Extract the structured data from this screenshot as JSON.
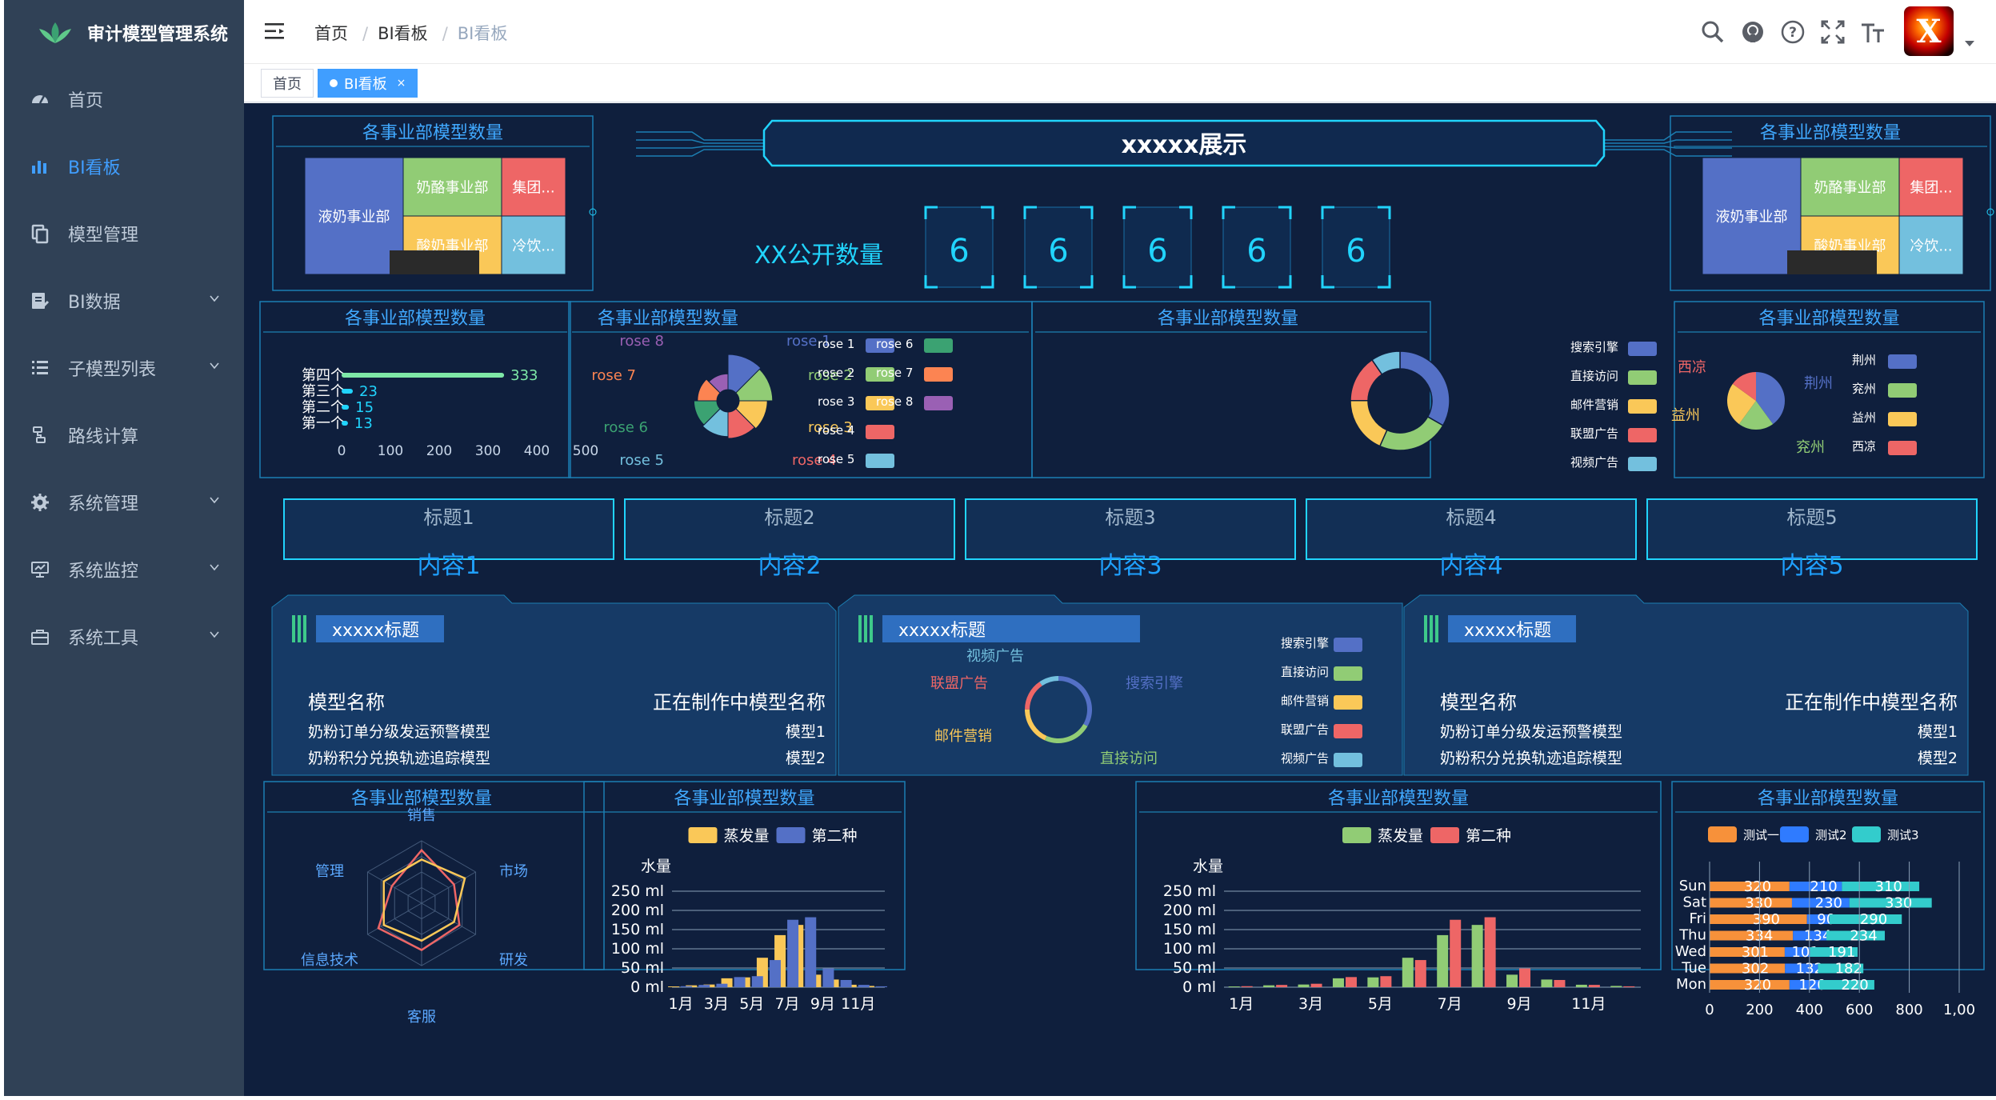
{
  "app": {
    "title": "审计模型管理系统"
  },
  "sidebar": {
    "items": [
      {
        "label": "首页",
        "icon": "dashboard-icon"
      },
      {
        "label": "BI看板",
        "icon": "bar-chart-icon"
      },
      {
        "label": "模型管理",
        "icon": "copy-icon"
      },
      {
        "label": "BI数据",
        "icon": "edit-doc-icon"
      },
      {
        "label": "子模型列表",
        "icon": "list-icon"
      },
      {
        "label": "路线计算",
        "icon": "route-icon"
      },
      {
        "label": "系统管理",
        "icon": "gear-icon"
      },
      {
        "label": "系统监控",
        "icon": "monitor-icon"
      },
      {
        "label": "系统工具",
        "icon": "toolbox-icon"
      }
    ]
  },
  "breadcrumb": [
    "首页",
    "BI看板",
    "BI看板"
  ],
  "tags": [
    {
      "label": "首页"
    },
    {
      "label": "BI看板",
      "close": "×"
    }
  ],
  "avatar": {
    "letter": "X"
  },
  "colors": {
    "accent": "#409eff",
    "sidebar": "#304156",
    "dash_bg": "#0f1f3d",
    "cyan": "#00e5ff"
  },
  "dashboard": {
    "header_title": "xxxxx展示",
    "count_label": "XX公开数量",
    "count_digits": [
      "6",
      "6",
      "6",
      "6",
      "6"
    ],
    "panel_title": "各事业部模型数量",
    "kpis": [
      {
        "title": "标题1",
        "content": "内容1"
      },
      {
        "title": "标题2",
        "content": "内容2"
      },
      {
        "title": "标题3",
        "content": "内容3"
      },
      {
        "title": "标题4",
        "content": "内容4"
      },
      {
        "title": "标题5",
        "content": "内容5"
      }
    ],
    "card_title": "xxxxx标题",
    "model_table": {
      "col1": "模型名称",
      "col2": "正在制作中模型名称",
      "rows": [
        [
          "奶粉订单分级发运预警模型",
          "模型1"
        ],
        [
          "奶粉积分兑换轨迹追踪模型",
          "模型2"
        ]
      ]
    }
  },
  "chart_data": [
    {
      "type": "treemap",
      "title": "各事业部模型数量",
      "items": [
        {
          "name": "液奶事业部"
        },
        {
          "name": "奶酪事业部"
        },
        {
          "name": "集团..."
        },
        {
          "name": "酸奶事业部"
        },
        {
          "name": "冷饮..."
        }
      ]
    },
    {
      "type": "bar",
      "orientation": "horizontal",
      "title": "各事业部模型数量",
      "categories": [
        "第一个",
        "第二个",
        "第三个",
        "第四个"
      ],
      "values": [
        13,
        15,
        23,
        333
      ],
      "xticks": [
        "0",
        "100",
        "200",
        "300",
        "400",
        "500"
      ],
      "xlim": [
        0,
        500
      ]
    },
    {
      "type": "pie",
      "variant": "rose",
      "title": "各事业部模型数量",
      "labels": [
        "rose 1",
        "rose 2",
        "rose 3",
        "rose 4",
        "rose 5",
        "rose 6",
        "rose 7",
        "rose 8"
      ],
      "values": [
        40,
        38,
        32,
        30,
        28,
        26,
        22,
        18
      ],
      "colors": [
        "#5470c6",
        "#91cc75",
        "#fac858",
        "#ee6666",
        "#73c0de",
        "#3ba272",
        "#fc8452",
        "#9a60b4"
      ]
    },
    {
      "type": "pie",
      "variant": "donut",
      "title": "各事业部模型数量",
      "labels": [
        "搜索引擎",
        "直接访问",
        "邮件营销",
        "联盟广告",
        "视频广告"
      ],
      "values": [
        1048,
        735,
        580,
        484,
        300
      ],
      "colors": [
        "#5470c6",
        "#91cc75",
        "#fac858",
        "#ee6666",
        "#73c0de"
      ]
    },
    {
      "type": "pie",
      "title": "各事业部模型数量",
      "labels": [
        "荆州",
        "兖州",
        "益州",
        "西凉"
      ],
      "values": [
        40,
        20,
        25,
        15
      ],
      "colors": [
        "#5470c6",
        "#91cc75",
        "#fac858",
        "#ee6666"
      ]
    },
    {
      "type": "radar",
      "title": "各事业部模型数量",
      "indicators": [
        "销售",
        "市场",
        "研发",
        "客服",
        "信息技术",
        "管理"
      ]
    },
    {
      "type": "bar",
      "title": "各事业部模型数量",
      "ylabel": "水量",
      "categories": [
        "1月",
        "2月",
        "3月",
        "4月",
        "5月",
        "6月",
        "7月",
        "8月",
        "9月",
        "10月",
        "11月",
        "12月"
      ],
      "xticks": [
        "1月",
        "3月",
        "5月",
        "7月",
        "9月",
        "11月"
      ],
      "yticks": [
        "0 ml",
        "50 ml",
        "100 ml",
        "150 ml",
        "200 ml",
        "250 ml"
      ],
      "ylim": [
        0,
        250
      ],
      "series": [
        {
          "name": "蒸发量",
          "values": [
            2,
            4.9,
            7,
            23.2,
            25.6,
            76.7,
            135.6,
            162.2,
            32.6,
            20,
            6.4,
            3.3
          ],
          "color": "#fac858"
        },
        {
          "name": "第二种",
          "values": [
            2.6,
            5.9,
            9,
            26.4,
            28.7,
            70.7,
            175.6,
            182.2,
            48.7,
            18.8,
            6,
            2.3
          ],
          "color": "#5470c6"
        }
      ]
    },
    {
      "type": "bar",
      "title": "各事业部模型数量",
      "ylabel": "水量",
      "categories": [
        "1月",
        "2月",
        "3月",
        "4月",
        "5月",
        "6月",
        "7月",
        "8月",
        "9月",
        "10月",
        "11月",
        "12月"
      ],
      "xticks": [
        "1月",
        "3月",
        "5月",
        "7月",
        "9月",
        "11月"
      ],
      "yticks": [
        "0 ml",
        "50 ml",
        "100 ml",
        "150 ml",
        "200 ml",
        "250 ml"
      ],
      "ylim": [
        0,
        250
      ],
      "series": [
        {
          "name": "蒸发量",
          "values": [
            2,
            4.9,
            7,
            23.2,
            25.6,
            76.7,
            135.6,
            162.2,
            32.6,
            20,
            6.4,
            3.3
          ],
          "color": "#91cc75"
        },
        {
          "name": "第二种",
          "values": [
            2.6,
            5.9,
            9,
            26.4,
            28.7,
            70.7,
            175.6,
            182.2,
            48.7,
            18.8,
            6,
            2.3
          ],
          "color": "#ee6666"
        }
      ]
    },
    {
      "type": "bar",
      "orientation": "horizontal",
      "stacked": true,
      "title": "各事业部模型数量",
      "categories": [
        "Mon",
        "Tue",
        "Wed",
        "Thu",
        "Fri",
        "Sat",
        "Sun"
      ],
      "xticks": [
        "0",
        "200",
        "400",
        "600",
        "800",
        "1,00"
      ],
      "xlim": [
        0,
        1000
      ],
      "series": [
        {
          "name": "测试一",
          "values": [
            320,
            302,
            301,
            334,
            390,
            330,
            320
          ],
          "color": "#f7913a"
        },
        {
          "name": "测试2",
          "values": [
            120,
            132,
            101,
            134,
            90,
            230,
            210
          ],
          "color": "#2f7bff"
        },
        {
          "name": "测试3",
          "values": [
            220,
            182,
            191,
            234,
            290,
            330,
            310
          ],
          "color": "#33cccc"
        }
      ]
    }
  ]
}
